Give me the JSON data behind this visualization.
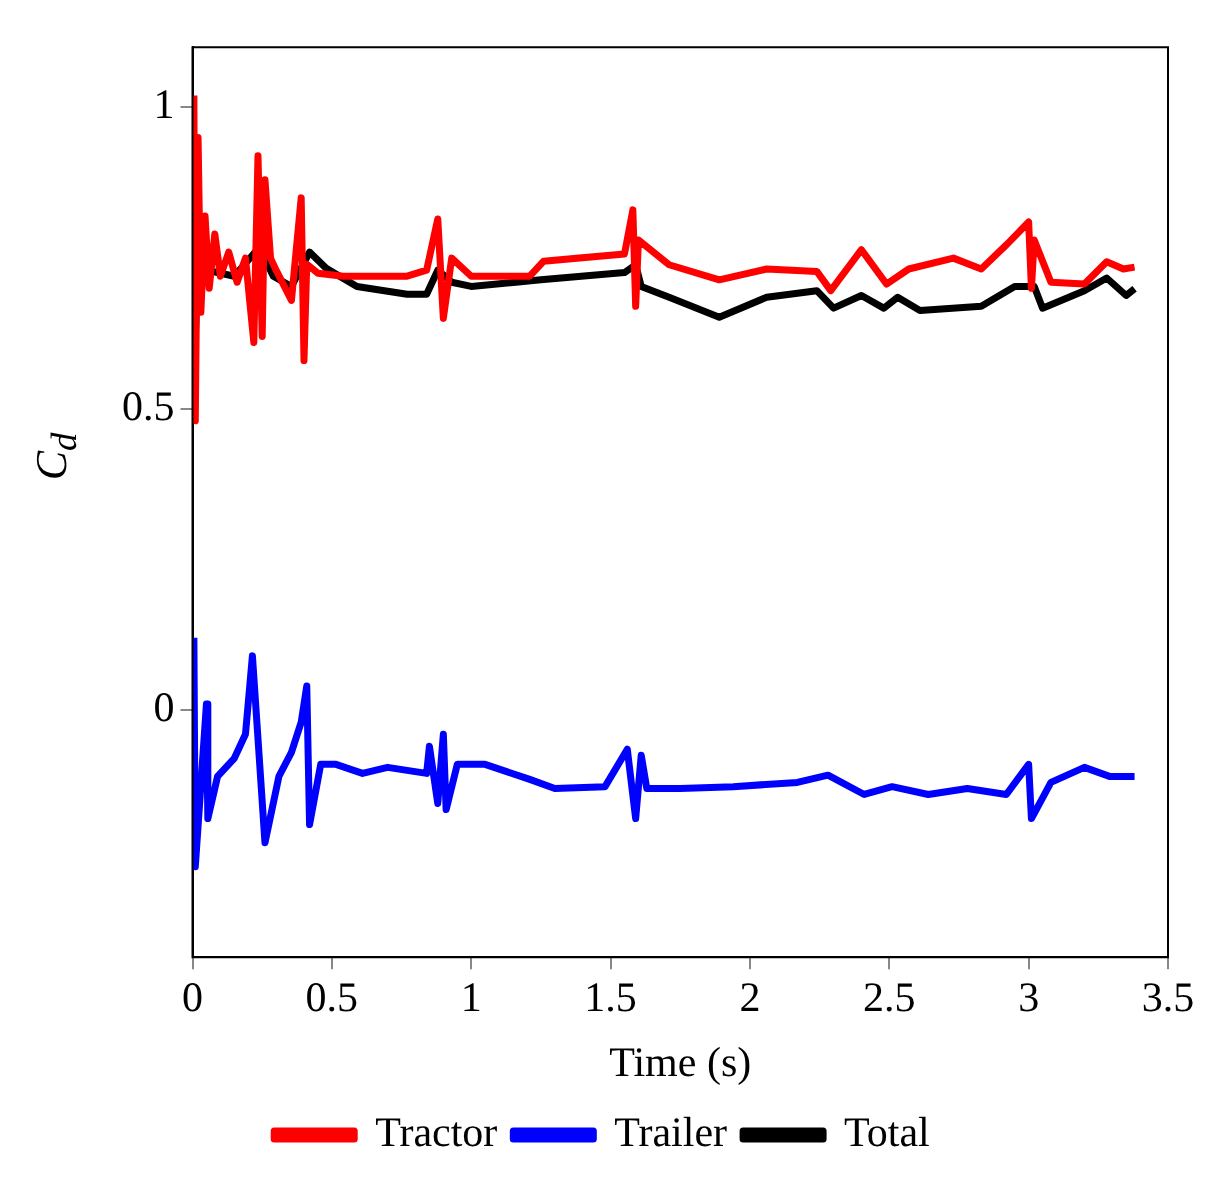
{
  "chart_data": {
    "type": "line",
    "xlabel": "Time (s)",
    "ylabel": "C$_{d}$",
    "xlim": [
      0,
      3.5
    ],
    "xticks": [
      0,
      0.5,
      1,
      1.5,
      2,
      2.5,
      3,
      3.5
    ],
    "ylim": [
      -0.41,
      1.1
    ],
    "yticks": [
      0,
      0.5,
      1
    ],
    "grid": false,
    "legend": "bottom",
    "marker": "none",
    "line_style": "solid",
    "series": [
      {
        "name": "Tractor",
        "color": "#ff0000",
        "x": [
          0.005,
          0.01,
          0.02,
          0.03,
          0.045,
          0.06,
          0.08,
          0.1,
          0.13,
          0.16,
          0.19,
          0.22,
          0.235,
          0.25,
          0.26,
          0.28,
          0.3,
          0.355,
          0.39,
          0.4,
          0.41,
          0.45,
          0.54,
          0.77,
          0.84,
          0.88,
          0.9,
          0.93,
          1.0,
          1.21,
          1.26,
          1.55,
          1.58,
          1.59,
          1.6,
          1.71,
          1.89,
          2.06,
          2.24,
          2.29,
          2.4,
          2.49,
          2.57,
          2.73,
          2.83,
          2.92,
          3.0,
          3.01,
          3.02,
          3.08,
          3.2,
          3.28,
          3.34,
          3.38
        ],
        "values": [
          1.02,
          0.48,
          0.95,
          0.66,
          0.82,
          0.7,
          0.79,
          0.72,
          0.76,
          0.71,
          0.75,
          0.61,
          0.92,
          0.62,
          0.88,
          0.75,
          0.73,
          0.68,
          0.85,
          0.58,
          0.74,
          0.725,
          0.72,
          0.72,
          0.73,
          0.815,
          0.65,
          0.75,
          0.72,
          0.72,
          0.745,
          0.757,
          0.83,
          0.67,
          0.78,
          0.739,
          0.714,
          0.732,
          0.728,
          0.696,
          0.764,
          0.707,
          0.732,
          0.75,
          0.732,
          0.772,
          0.81,
          0.7,
          0.78,
          0.71,
          0.707,
          0.744,
          0.732,
          0.735
        ]
      },
      {
        "name": "Trailer",
        "color": "#0000ff",
        "x": [
          0.005,
          0.01,
          0.05,
          0.055,
          0.09,
          0.15,
          0.19,
          0.215,
          0.26,
          0.31,
          0.355,
          0.39,
          0.41,
          0.42,
          0.46,
          0.515,
          0.61,
          0.7,
          0.84,
          0.85,
          0.88,
          0.9,
          0.91,
          0.95,
          1.05,
          1.21,
          1.3,
          1.48,
          1.56,
          1.59,
          1.61,
          1.63,
          1.75,
          1.94,
          2.17,
          2.28,
          2.41,
          2.51,
          2.64,
          2.78,
          2.92,
          3.0,
          3.01,
          3.08,
          3.2,
          3.29,
          3.38
        ],
        "values": [
          0.12,
          -0.26,
          0.01,
          -0.18,
          -0.11,
          -0.08,
          -0.04,
          0.09,
          -0.22,
          -0.11,
          -0.07,
          -0.02,
          0.04,
          -0.19,
          -0.09,
          -0.09,
          -0.105,
          -0.095,
          -0.105,
          -0.06,
          -0.155,
          -0.04,
          -0.165,
          -0.09,
          -0.09,
          -0.115,
          -0.13,
          -0.127,
          -0.065,
          -0.18,
          -0.075,
          -0.13,
          -0.13,
          -0.127,
          -0.12,
          -0.108,
          -0.14,
          -0.127,
          -0.14,
          -0.13,
          -0.14,
          -0.09,
          -0.18,
          -0.12,
          -0.095,
          -0.11,
          -0.11
        ]
      },
      {
        "name": "Total",
        "color": "#000000",
        "x": [
          0.005,
          0.01,
          0.02,
          0.05,
          0.15,
          0.24,
          0.29,
          0.355,
          0.42,
          0.48,
          0.59,
          0.77,
          0.84,
          0.88,
          0.93,
          1.0,
          1.16,
          1.25,
          1.55,
          1.59,
          1.61,
          1.71,
          1.89,
          2.06,
          2.24,
          2.3,
          2.4,
          2.48,
          2.53,
          2.61,
          2.83,
          2.95,
          3.02,
          3.05,
          3.2,
          3.28,
          3.35,
          3.38
        ],
        "values": [
          0.94,
          0.62,
          0.75,
          0.73,
          0.72,
          0.768,
          0.72,
          0.703,
          0.76,
          0.733,
          0.703,
          0.69,
          0.69,
          0.73,
          0.71,
          0.703,
          0.71,
          0.714,
          0.726,
          0.739,
          0.703,
          0.685,
          0.652,
          0.685,
          0.696,
          0.667,
          0.688,
          0.667,
          0.685,
          0.663,
          0.67,
          0.703,
          0.703,
          0.667,
          0.696,
          0.717,
          0.688,
          0.699
        ]
      }
    ]
  }
}
